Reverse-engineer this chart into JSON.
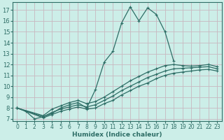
{
  "title": "",
  "xlabel": "Humidex (Indice chaleur)",
  "ylabel": "",
  "bg_color": "#cceee8",
  "line_color": "#2e6e66",
  "grid_color": "#c8b8c0",
  "xlim": [
    -0.5,
    23.5
  ],
  "ylim": [
    6.8,
    17.7
  ],
  "xticks": [
    0,
    1,
    2,
    3,
    4,
    5,
    6,
    7,
    8,
    9,
    10,
    11,
    12,
    13,
    14,
    15,
    16,
    17,
    18,
    19,
    20,
    21,
    22,
    23
  ],
  "yticks": [
    7,
    8,
    9,
    10,
    11,
    12,
    13,
    14,
    15,
    16,
    17
  ],
  "lines": [
    {
      "x": [
        0,
        1,
        2,
        3,
        4,
        5,
        6,
        7,
        8,
        9,
        10,
        11,
        12,
        13,
        14,
        15,
        16,
        17,
        18
      ],
      "y": [
        8.0,
        7.7,
        7.0,
        7.2,
        7.5,
        8.0,
        8.3,
        8.5,
        8.0,
        9.7,
        12.2,
        13.2,
        15.8,
        17.3,
        16.0,
        17.2,
        16.6,
        15.0,
        12.3
      ]
    },
    {
      "x": [
        0,
        3,
        4,
        5,
        6,
        7,
        8,
        9,
        10,
        11,
        12,
        13,
        14,
        15,
        16,
        17,
        18,
        19,
        20,
        21,
        22,
        23
      ],
      "y": [
        8.0,
        7.3,
        7.9,
        8.2,
        8.5,
        8.7,
        8.4,
        8.6,
        9.0,
        9.5,
        10.0,
        10.5,
        10.9,
        11.3,
        11.6,
        11.9,
        12.0,
        11.9,
        11.85,
        11.9,
        12.0,
        11.8
      ]
    },
    {
      "x": [
        0,
        3,
        4,
        5,
        6,
        7,
        8,
        9,
        10,
        11,
        12,
        13,
        14,
        15,
        16,
        17,
        18,
        19,
        20,
        21,
        22,
        23
      ],
      "y": [
        8.0,
        7.2,
        7.6,
        7.9,
        8.1,
        8.3,
        8.1,
        8.3,
        8.7,
        9.1,
        9.6,
        10.0,
        10.4,
        10.8,
        11.1,
        11.4,
        11.6,
        11.65,
        11.7,
        11.75,
        11.8,
        11.6
      ]
    },
    {
      "x": [
        0,
        3,
        4,
        5,
        6,
        7,
        8,
        9,
        10,
        11,
        12,
        13,
        14,
        15,
        16,
        17,
        18,
        19,
        20,
        21,
        22,
        23
      ],
      "y": [
        8.0,
        7.1,
        7.4,
        7.7,
        7.9,
        8.1,
        7.9,
        8.0,
        8.4,
        8.7,
        9.2,
        9.6,
        10.0,
        10.3,
        10.7,
        11.0,
        11.2,
        11.3,
        11.4,
        11.5,
        11.55,
        11.4
      ]
    }
  ]
}
